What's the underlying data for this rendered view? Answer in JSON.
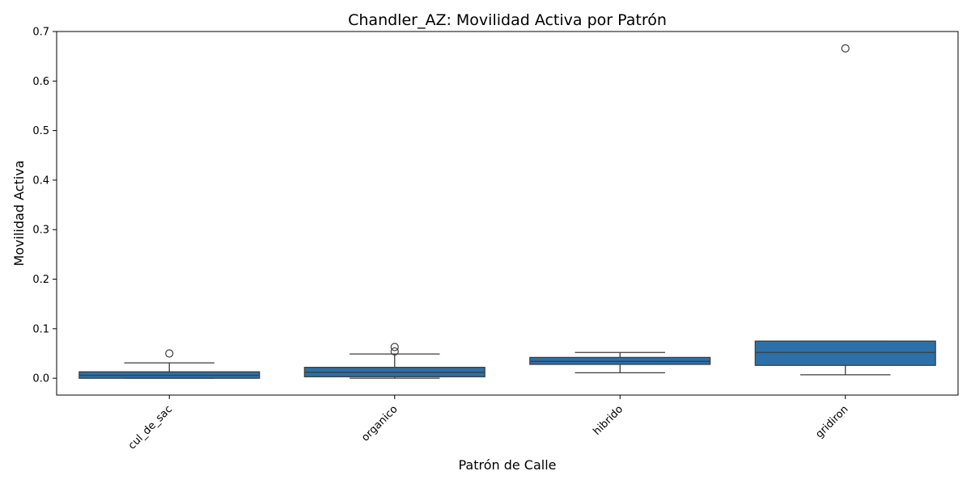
{
  "chart_data": {
    "type": "box",
    "title": "Chandler_AZ: Movilidad Activa por Patrón",
    "xlabel": "Patrón de Calle",
    "ylabel": "Movilidad Activa",
    "ylim": [
      -0.034,
      0.7
    ],
    "yticks": [
      0.0,
      0.1,
      0.2,
      0.3,
      0.4,
      0.5,
      0.6,
      0.7
    ],
    "ytick_labels": [
      "0.0",
      "0.1",
      "0.2",
      "0.3",
      "0.4",
      "0.5",
      "0.6",
      "0.7"
    ],
    "categories": [
      "cul_de_sac",
      "organico",
      "hibrido",
      "gridiron"
    ],
    "boxes": [
      {
        "whisker_low": 0.0,
        "q1": 0.0,
        "median": 0.006,
        "q3": 0.013,
        "whisker_high": 0.031,
        "outliers": [
          0.05
        ]
      },
      {
        "whisker_low": 0.0,
        "q1": 0.003,
        "median": 0.012,
        "q3": 0.022,
        "whisker_high": 0.049,
        "outliers": [
          0.054,
          0.063
        ]
      },
      {
        "whisker_low": 0.011,
        "q1": 0.028,
        "median": 0.034,
        "q3": 0.042,
        "whisker_high": 0.052,
        "outliers": []
      },
      {
        "whisker_low": 0.007,
        "q1": 0.026,
        "median": 0.052,
        "q3": 0.075,
        "whisker_high": 0.075,
        "outliers": [
          0.666
        ]
      }
    ],
    "box_color": "#2b70a8",
    "line_color": "#3d3d3d",
    "grid": false,
    "xtick_rotation": -45
  }
}
